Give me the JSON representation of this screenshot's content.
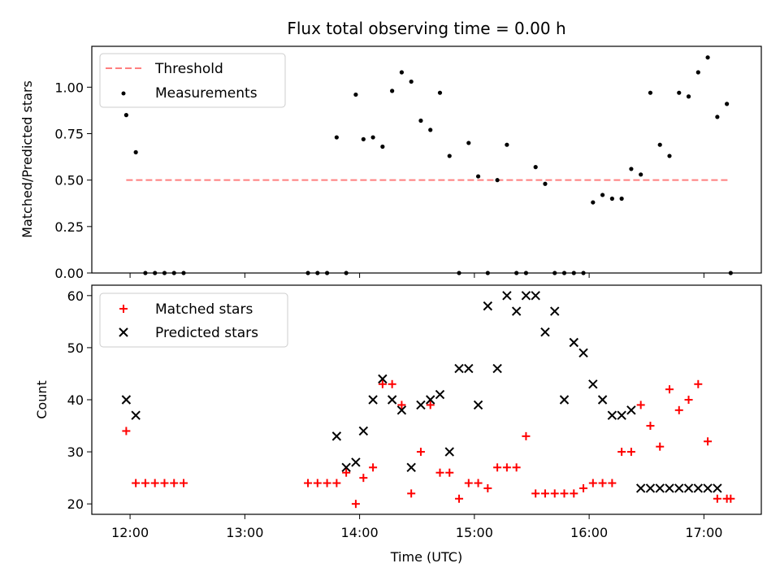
{
  "chart_data": [
    {
      "type": "scatter",
      "title": "Flux total observing time = 0.00 h",
      "xlabel": "",
      "ylabel": "Matched/Predicted stars",
      "xlim": [
        "11:40",
        "17:30"
      ],
      "ylim": [
        0,
        1.22
      ],
      "yticks": [
        0.0,
        0.25,
        0.5,
        0.75,
        1.0
      ],
      "ytick_labels": [
        "0.00",
        "0.25",
        "0.50",
        "0.75",
        "1.00"
      ],
      "legend": {
        "placement": "top-left",
        "entries": [
          "Threshold",
          "Measurements"
        ]
      },
      "threshold": {
        "name": "Threshold",
        "value": 0.5,
        "x_start": "11:58",
        "x_end": "17:14",
        "color": "#ff7f7f",
        "style": "dashed"
      },
      "series": [
        {
          "name": "Measurements",
          "color": "#000000",
          "marker": "dot",
          "x": [
            "11:58",
            "12:03",
            "12:08",
            "12:13",
            "12:18",
            "12:23",
            "12:28",
            "13:33",
            "13:38",
            "13:43",
            "13:48",
            "13:53",
            "13:58",
            "14:02",
            "14:07",
            "14:12",
            "14:17",
            "14:22",
            "14:27",
            "14:32",
            "14:37",
            "14:42",
            "14:47",
            "14:52",
            "14:57",
            "15:02",
            "15:07",
            "15:12",
            "15:17",
            "15:22",
            "15:27",
            "15:32",
            "15:37",
            "15:42",
            "15:47",
            "15:52",
            "15:57",
            "16:02",
            "16:07",
            "16:12",
            "16:17",
            "16:22",
            "16:27",
            "16:32",
            "16:37",
            "16:42",
            "16:47",
            "16:52",
            "16:57",
            "17:02",
            "17:07",
            "17:12",
            "17:14"
          ],
          "y": [
            0.85,
            0.65,
            0.0,
            0.0,
            0.0,
            0.0,
            0.0,
            0.0,
            0.0,
            0.0,
            0.73,
            0.0,
            0.96,
            0.72,
            0.73,
            0.68,
            0.98,
            1.08,
            1.03,
            0.82,
            0.77,
            0.97,
            0.63,
            0.0,
            0.7,
            0.52,
            0.0,
            0.5,
            0.69,
            0.0,
            0.0,
            0.57,
            0.48,
            0.0,
            0.0,
            0.0,
            0.0,
            0.38,
            0.42,
            0.4,
            0.4,
            0.56,
            0.53,
            0.97,
            0.69,
            0.63,
            0.97,
            0.95,
            1.08,
            1.16,
            0.84,
            0.91,
            0.0
          ]
        }
      ]
    },
    {
      "type": "scatter",
      "title": "",
      "xlabel": "Time (UTC)",
      "ylabel": "Count",
      "xlim": [
        "11:40",
        "17:30"
      ],
      "xticks": [
        "12:00",
        "13:00",
        "14:00",
        "15:00",
        "16:00",
        "17:00"
      ],
      "ylim": [
        18,
        62
      ],
      "yticks": [
        20,
        30,
        40,
        50,
        60
      ],
      "legend": {
        "placement": "top-left",
        "entries": [
          "Matched stars",
          "Predicted stars"
        ]
      },
      "series": [
        {
          "name": "Matched stars",
          "color": "#ff0000",
          "marker": "plus",
          "x": [
            "11:58",
            "12:03",
            "12:08",
            "12:13",
            "12:18",
            "12:23",
            "12:28",
            "13:33",
            "13:38",
            "13:43",
            "13:48",
            "13:53",
            "13:58",
            "14:02",
            "14:07",
            "14:12",
            "14:17",
            "14:22",
            "14:27",
            "14:32",
            "14:37",
            "14:42",
            "14:47",
            "14:52",
            "14:57",
            "15:02",
            "15:07",
            "15:12",
            "15:17",
            "15:22",
            "15:27",
            "15:32",
            "15:37",
            "15:42",
            "15:47",
            "15:52",
            "15:57",
            "16:02",
            "16:07",
            "16:12",
            "16:17",
            "16:22",
            "16:27",
            "16:32",
            "16:37",
            "16:42",
            "16:47",
            "16:52",
            "16:57",
            "17:02",
            "17:07",
            "17:12",
            "17:14"
          ],
          "y": [
            34,
            24,
            24,
            24,
            24,
            24,
            24,
            24,
            24,
            24,
            24,
            26,
            20,
            25,
            27,
            43,
            43,
            39,
            22,
            30,
            39,
            26,
            26,
            21,
            24,
            24,
            23,
            27,
            27,
            27,
            33,
            22,
            22,
            22,
            22,
            22,
            23,
            24,
            24,
            24,
            30,
            30,
            39,
            35,
            31,
            42,
            38,
            40,
            43,
            32,
            21,
            21,
            21
          ]
        },
        {
          "name": "Predicted stars",
          "color": "#000000",
          "marker": "x",
          "x": [
            "11:58",
            "12:03",
            "13:48",
            "13:53",
            "13:58",
            "14:02",
            "14:07",
            "14:12",
            "14:17",
            "14:22",
            "14:27",
            "14:32",
            "14:37",
            "14:42",
            "14:47",
            "14:52",
            "14:57",
            "15:02",
            "15:07",
            "15:12",
            "15:17",
            "15:22",
            "15:27",
            "15:32",
            "15:37",
            "15:42",
            "15:47",
            "15:52",
            "15:57",
            "16:02",
            "16:07",
            "16:12",
            "16:17",
            "16:22",
            "16:27",
            "16:32",
            "16:37",
            "16:42",
            "16:47",
            "16:52",
            "16:57",
            "17:02",
            "17:07"
          ],
          "y": [
            40,
            37,
            33,
            27,
            28,
            34,
            40,
            44,
            40,
            38,
            27,
            39,
            40,
            41,
            30,
            46,
            46,
            39,
            58,
            46,
            60,
            57,
            60,
            60,
            53,
            57,
            40,
            51,
            49,
            43,
            40,
            37,
            37,
            38,
            23,
            23,
            23,
            23,
            23,
            23,
            23,
            23,
            23
          ]
        }
      ]
    }
  ]
}
